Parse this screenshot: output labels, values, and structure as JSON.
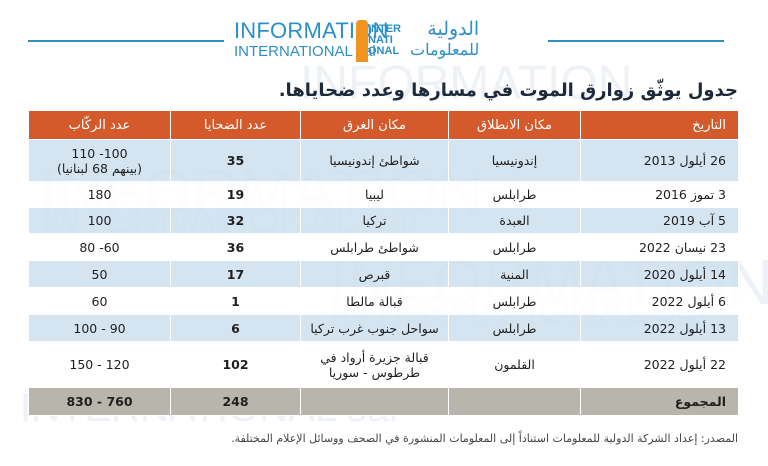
{
  "brand": {
    "en_line1": "INFORMATION",
    "en_line2": "INTERNATIONAL sal",
    "logo_text": "INTER NATI ONAL",
    "ar_line1": "الدولية",
    "ar_line2": "للمعلومات"
  },
  "watermark": {
    "en1": "INFORMATION",
    "en2": "INTERNATIONAL sal",
    "ar": "الدولية للمعلومات"
  },
  "title": "جدول يوثّق زوارق الموت في مسارها وعدد ضحاياها.",
  "table": {
    "headers": [
      "التاريخ",
      "مكان الانطلاق",
      "مكان الغرق",
      "عدد الضحايا",
      "عدد الركّاب"
    ],
    "rows": [
      {
        "date": "26 أيلول 2013",
        "departure": "إندونيسيا",
        "sinking": "شواطئ إندونيسيا",
        "victims": "35",
        "passengers_1": "100- 110",
        "passengers_2": "(بينهم 68 لبنانيا)"
      },
      {
        "date": "3 تموز 2016",
        "departure": "طرابلس",
        "sinking": "ليبيا",
        "victims": "19",
        "passengers_1": "180",
        "passengers_2": ""
      },
      {
        "date": "5 آب 2019",
        "departure": "العبدة",
        "sinking": "تركيا",
        "victims": "32",
        "passengers_1": "100",
        "passengers_2": ""
      },
      {
        "date": "23 نيسان 2022",
        "departure": "طرابلس",
        "sinking": "شواطئ طرابلس",
        "victims": "36",
        "passengers_1": "60- 80",
        "passengers_2": ""
      },
      {
        "date": "14 أيلول 2020",
        "departure": "المنية",
        "sinking": "قبرص",
        "victims": "17",
        "passengers_1": "50",
        "passengers_2": ""
      },
      {
        "date": "6 أيلول 2022",
        "departure": "طرابلس",
        "sinking": "قبالة مالطا",
        "victims": "1",
        "passengers_1": "60",
        "passengers_2": ""
      },
      {
        "date": "13 أيلول 2022",
        "departure": "طرابلس",
        "sinking": "سواحل جنوب غرب تركيا",
        "victims": "6",
        "passengers_1": "90 - 100",
        "passengers_2": ""
      },
      {
        "date": "22 أيلول 2022",
        "departure": "القلمون",
        "sinking": "قبالة جزيرة أرواد في طرطوس - سوريا",
        "victims": "102",
        "passengers_1": "120 - 150",
        "passengers_2": ""
      }
    ],
    "total": {
      "label": "المجموع",
      "victims": "248",
      "passengers": "760 - 830"
    }
  },
  "source": "المصدر: إعداد الشركة الدولية للمعلومات استناداً إلى المعلومات المنشورة في الصحف ووسائل الإعلام المختلفة.",
  "colors": {
    "header_bg": "#d45a2c",
    "row_blue": "#cde1ee",
    "total_bg": "#b8b6ac",
    "brand_blue": "#2d8fc7",
    "brand_orange": "#f0941f"
  }
}
